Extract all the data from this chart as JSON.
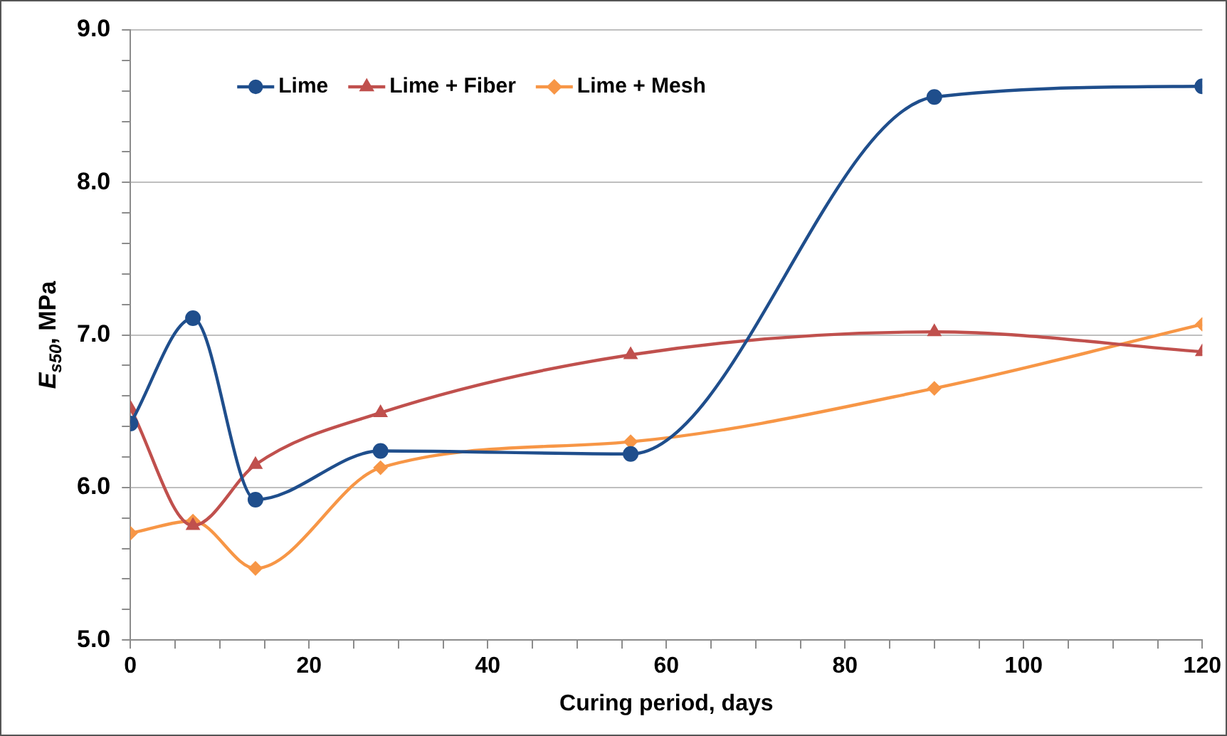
{
  "chart_data": {
    "type": "line",
    "xlabel": "Curing period, days",
    "ylabel": "E$_{s50}$, MPa",
    "x": [
      0,
      7,
      14,
      28,
      56,
      90,
      120
    ],
    "series": [
      {
        "name": "Lime",
        "color": "#1f4e8c",
        "marker": "circle",
        "values": [
          6.42,
          7.11,
          5.92,
          6.24,
          6.22,
          8.56,
          8.63
        ]
      },
      {
        "name": "Lime + Fiber",
        "color": "#c0504d",
        "marker": "triangle",
        "values": [
          6.52,
          5.75,
          6.15,
          6.49,
          6.87,
          7.02,
          6.89
        ]
      },
      {
        "name": "Lime + Mesh",
        "color": "#f79646",
        "marker": "diamond",
        "values": [
          5.7,
          5.78,
          5.47,
          6.13,
          6.3,
          6.65,
          7.07
        ]
      }
    ],
    "xlim": [
      0,
      120
    ],
    "xticks": [
      0,
      {
        "value": 5,
        "label": null
      },
      {
        "value": 10,
        "label": null
      },
      {
        "value": 15,
        "label": null
      },
      20,
      {
        "value": 25,
        "label": null
      },
      {
        "value": 30,
        "label": null
      },
      {
        "value": 35,
        "label": null
      },
      40,
      {
        "value": 45,
        "label": null
      },
      {
        "value": 50,
        "label": null
      },
      {
        "value": 55,
        "label": null
      },
      60,
      {
        "value": 65,
        "label": null
      },
      {
        "value": 70,
        "label": null
      },
      {
        "value": 75,
        "label": null
      },
      80,
      {
        "value": 85,
        "label": null
      },
      {
        "value": 90,
        "label": null
      },
      {
        "value": 95,
        "label": null
      },
      100,
      {
        "value": 105,
        "label": null
      },
      {
        "value": 110,
        "label": null
      },
      {
        "value": 115,
        "label": null
      },
      120
    ],
    "ylim": [
      5,
      9
    ],
    "yticks": [
      {
        "value": 5,
        "label": "5.0"
      },
      {
        "value": 5.2,
        "label": null
      },
      {
        "value": 5.4,
        "label": null
      },
      {
        "value": 5.6,
        "label": null
      },
      {
        "value": 5.8,
        "label": null
      },
      {
        "value": 6,
        "label": "6.0"
      },
      {
        "value": 6.2,
        "label": null
      },
      {
        "value": 6.4,
        "label": null
      },
      {
        "value": 6.6,
        "label": null
      },
      {
        "value": 6.8,
        "label": null
      },
      {
        "value": 7,
        "label": "7.0"
      },
      {
        "value": 7.2,
        "label": null
      },
      {
        "value": 7.4,
        "label": null
      },
      {
        "value": 7.6,
        "label": null
      },
      {
        "value": 7.8,
        "label": null
      },
      {
        "value": 8,
        "label": "8.0"
      },
      {
        "value": 8.2,
        "label": null
      },
      {
        "value": 8.4,
        "label": null
      },
      {
        "value": 8.6,
        "label": null
      },
      {
        "value": 8.8,
        "label": null
      },
      {
        "value": 9,
        "label": "9.0"
      }
    ],
    "grid": "y",
    "legend": "top left"
  }
}
